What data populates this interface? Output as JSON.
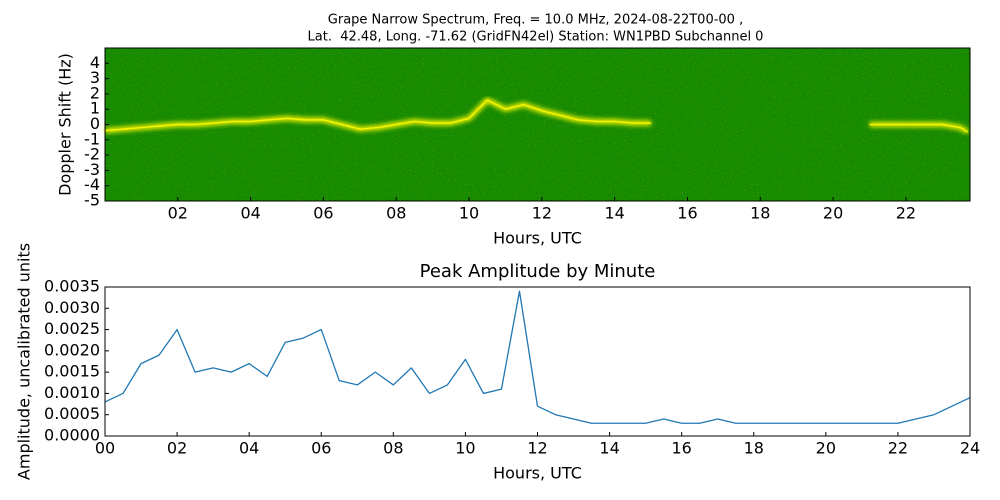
{
  "chart_data": [
    {
      "type": "spectrogram",
      "title": [
        "Grape Narrow Spectrum, Freq. = 10.0 MHz, 2024-08-22T00-00 ,",
        "Lat.  42.48, Long. -71.62 (GridFN42el) Station: WN1PBD Subchannel 0"
      ],
      "xlabel": "Hours, UTC",
      "ylabel": "Doppler Shift (Hz)",
      "background": "#168a00",
      "color": "#f4f400",
      "x": [
        0,
        0.5,
        1,
        1.5,
        2,
        2.5,
        3,
        3.5,
        4,
        4.5,
        5,
        5.5,
        6,
        6.5,
        7,
        7.5,
        8,
        8.5,
        9,
        9.5,
        10,
        10.5,
        11,
        11.5,
        12,
        12.5,
        13,
        13.5,
        14,
        14.5,
        15,
        16,
        20,
        21,
        21.5,
        22,
        22.5,
        23,
        23.5,
        23.7
      ],
      "values": [
        -0.4,
        -0.3,
        -0.2,
        -0.1,
        0,
        0,
        0.1,
        0.2,
        0.2,
        0.3,
        0.4,
        0.3,
        0.3,
        0,
        -0.3,
        -0.2,
        0,
        0.2,
        0.1,
        0.1,
        0.4,
        1.6,
        1,
        1.3,
        0.9,
        0.6,
        0.3,
        0.2,
        0.2,
        0.1,
        0.1,
        null,
        null,
        0,
        0,
        0,
        0,
        0,
        -0.2,
        -0.5
      ],
      "xlim": [
        0,
        23.76
      ],
      "ylim": [
        -5,
        5
      ],
      "xticks": [
        {
          "value": 2,
          "label": "02"
        },
        {
          "value": 4,
          "label": "04"
        },
        {
          "value": 6,
          "label": "06"
        },
        {
          "value": 8,
          "label": "08"
        },
        10,
        12,
        14,
        16,
        18,
        20,
        22
      ],
      "yticks": [
        4,
        3,
        2,
        1,
        0,
        -1,
        -2,
        -3,
        -4,
        -5
      ]
    },
    {
      "type": "line",
      "title": "Peak Amplitude by Minute",
      "xlabel": "Hours, UTC",
      "ylabel": "Amplitude, uncalibrated units",
      "color": "#1f77b4",
      "x": [
        0,
        0.5,
        1,
        1.5,
        2,
        2.5,
        3,
        3.5,
        4,
        4.5,
        5,
        5.5,
        6,
        6.5,
        7,
        7.5,
        8,
        8.5,
        9,
        9.5,
        10,
        10.5,
        11,
        11.5,
        12,
        12.5,
        13,
        13.5,
        14,
        14.5,
        15,
        15.5,
        16,
        16.5,
        17,
        17.5,
        18,
        18.5,
        19,
        19.5,
        20,
        20.5,
        21,
        21.5,
        22,
        22.5,
        23,
        23.5,
        24
      ],
      "values": [
        0.0008,
        0.001,
        0.0017,
        0.0019,
        0.0025,
        0.0015,
        0.0016,
        0.0015,
        0.0017,
        0.0014,
        0.0022,
        0.0023,
        0.0025,
        0.0013,
        0.0012,
        0.0015,
        0.0012,
        0.0016,
        0.001,
        0.0012,
        0.0018,
        0.001,
        0.0011,
        0.0034,
        0.0007,
        0.0005,
        0.0004,
        0.0003,
        0.0003,
        0.0003,
        0.0003,
        0.0004,
        0.0003,
        0.0003,
        0.0004,
        0.0003,
        0.0003,
        0.0003,
        0.0003,
        0.0003,
        0.0003,
        0.0003,
        0.0003,
        0.0003,
        0.0003,
        0.0004,
        0.0005,
        0.0007,
        0.0009
      ],
      "xlim": [
        0,
        24
      ],
      "ylim": [
        0,
        0.0035
      ],
      "xticks": [
        {
          "value": 0,
          "label": "00"
        },
        {
          "value": 2,
          "label": "02"
        },
        {
          "value": 4,
          "label": "04"
        },
        {
          "value": 6,
          "label": "06"
        },
        {
          "value": 8,
          "label": "08"
        },
        10,
        12,
        14,
        16,
        18,
        20,
        22,
        24
      ],
      "yticks": [
        {
          "value": 0,
          "label": "0.0000"
        },
        {
          "value": 0.0005,
          "label": "0.0005"
        },
        {
          "value": 0.001,
          "label": "0.0010"
        },
        {
          "value": 0.0015,
          "label": "0.0015"
        },
        {
          "value": 0.002,
          "label": "0.0020"
        },
        {
          "value": 0.0025,
          "label": "0.0025"
        },
        {
          "value": 0.003,
          "label": "0.0030"
        },
        {
          "value": 0.0035,
          "label": "0.0035"
        }
      ]
    }
  ]
}
